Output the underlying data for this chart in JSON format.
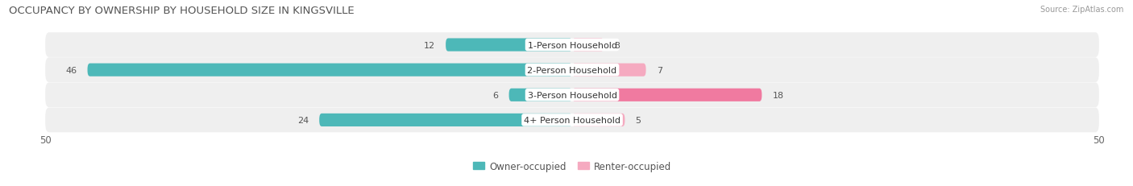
{
  "title": "OCCUPANCY BY OWNERSHIP BY HOUSEHOLD SIZE IN KINGSVILLE",
  "source": "Source: ZipAtlas.com",
  "categories": [
    "1-Person Household",
    "2-Person Household",
    "3-Person Household",
    "4+ Person Household"
  ],
  "owner_values": [
    12,
    46,
    6,
    24
  ],
  "renter_values": [
    3,
    7,
    18,
    5
  ],
  "owner_color": "#4db8b8",
  "renter_color": "#f07aa0",
  "renter_color_light": "#f5aac0",
  "row_bg_color": "#efefef",
  "axis_max": 50,
  "bar_height": 0.52,
  "title_fontsize": 9.5,
  "label_fontsize": 8,
  "tick_fontsize": 8.5,
  "legend_fontsize": 8.5,
  "source_fontsize": 7
}
